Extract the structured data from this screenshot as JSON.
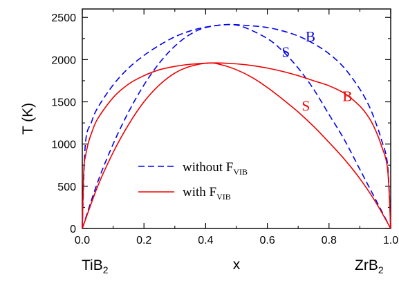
{
  "chart_data": {
    "type": "line",
    "xlabel": "x",
    "ylabel": "T (K)",
    "xlim": [
      0.0,
      1.0
    ],
    "ylim": [
      0,
      2600
    ],
    "x_ticks": [
      "0.0",
      "0.2",
      "0.4",
      "0.6",
      "0.8",
      "1.0"
    ],
    "y_ticks": [
      "0",
      "500",
      "1000",
      "1500",
      "2000",
      "2500"
    ],
    "x_end_labels": {
      "left": {
        "base": "TiB",
        "sub": "2"
      },
      "right": {
        "base": "ZrB",
        "sub": "2"
      }
    },
    "legend": [
      {
        "base": "without F",
        "sub": "VIB",
        "color": "#0000ee",
        "dash": true
      },
      {
        "base": "with F",
        "sub": "VIB",
        "color": "#ee0000",
        "dash": false
      }
    ],
    "curve_labels": [
      {
        "text": "B",
        "color": "#0000ee",
        "at": [
          0.74,
          2215
        ]
      },
      {
        "text": "S",
        "color": "#0000ee",
        "at": [
          0.66,
          2030
        ]
      },
      {
        "text": "B",
        "color": "#ee0000",
        "at": [
          0.86,
          1510
        ]
      },
      {
        "text": "S",
        "color": "#ee0000",
        "at": [
          0.725,
          1395
        ]
      }
    ],
    "series": [
      {
        "color": "#0000ee",
        "dash": true,
        "curve": "binodal",
        "points": [
          [
            0.0,
            0
          ],
          [
            0.01,
            1000
          ],
          [
            0.03,
            1260
          ],
          [
            0.05,
            1430
          ],
          [
            0.1,
            1700
          ],
          [
            0.15,
            1900
          ],
          [
            0.2,
            2050
          ],
          [
            0.25,
            2170
          ],
          [
            0.3,
            2270
          ],
          [
            0.35,
            2340
          ],
          [
            0.4,
            2385
          ],
          [
            0.47,
            2415
          ],
          [
            0.55,
            2400
          ],
          [
            0.6,
            2380
          ],
          [
            0.65,
            2340
          ],
          [
            0.7,
            2280
          ],
          [
            0.75,
            2190
          ],
          [
            0.8,
            2070
          ],
          [
            0.85,
            1900
          ],
          [
            0.9,
            1650
          ],
          [
            0.93,
            1450
          ],
          [
            0.95,
            1270
          ],
          [
            0.97,
            1050
          ],
          [
            0.99,
            750
          ],
          [
            1.0,
            0
          ]
        ]
      },
      {
        "color": "#0000ee",
        "dash": true,
        "curve": "spinodal",
        "points": [
          [
            0.0,
            0
          ],
          [
            0.05,
            550
          ],
          [
            0.1,
            1000
          ],
          [
            0.15,
            1380
          ],
          [
            0.2,
            1700
          ],
          [
            0.25,
            1960
          ],
          [
            0.3,
            2160
          ],
          [
            0.35,
            2300
          ],
          [
            0.4,
            2380
          ],
          [
            0.47,
            2415
          ],
          [
            0.52,
            2390
          ],
          [
            0.6,
            2250
          ],
          [
            0.65,
            2100
          ],
          [
            0.7,
            1900
          ],
          [
            0.75,
            1650
          ],
          [
            0.8,
            1350
          ],
          [
            0.85,
            1050
          ],
          [
            0.9,
            700
          ],
          [
            0.95,
            350
          ],
          [
            1.0,
            0
          ]
        ]
      },
      {
        "color": "#ee0000",
        "dash": false,
        "curve": "binodal",
        "points": [
          [
            0.0,
            0
          ],
          [
            0.005,
            700
          ],
          [
            0.01,
            850
          ],
          [
            0.02,
            1020
          ],
          [
            0.03,
            1130
          ],
          [
            0.05,
            1300
          ],
          [
            0.1,
            1550
          ],
          [
            0.15,
            1710
          ],
          [
            0.2,
            1810
          ],
          [
            0.25,
            1880
          ],
          [
            0.3,
            1920
          ],
          [
            0.35,
            1945
          ],
          [
            0.41,
            1960
          ],
          [
            0.45,
            1960
          ],
          [
            0.5,
            1950
          ],
          [
            0.55,
            1930
          ],
          [
            0.6,
            1900
          ],
          [
            0.65,
            1860
          ],
          [
            0.7,
            1810
          ],
          [
            0.75,
            1750
          ],
          [
            0.8,
            1690
          ],
          [
            0.85,
            1600
          ],
          [
            0.9,
            1450
          ],
          [
            0.93,
            1310
          ],
          [
            0.95,
            1170
          ],
          [
            0.97,
            980
          ],
          [
            0.99,
            700
          ],
          [
            1.0,
            0
          ]
        ]
      },
      {
        "color": "#ee0000",
        "dash": false,
        "curve": "spinodal",
        "points": [
          [
            0.0,
            0
          ],
          [
            0.05,
            500
          ],
          [
            0.1,
            900
          ],
          [
            0.15,
            1230
          ],
          [
            0.2,
            1500
          ],
          [
            0.25,
            1700
          ],
          [
            0.3,
            1840
          ],
          [
            0.35,
            1920
          ],
          [
            0.41,
            1960
          ],
          [
            0.45,
            1940
          ],
          [
            0.5,
            1880
          ],
          [
            0.55,
            1790
          ],
          [
            0.6,
            1670
          ],
          [
            0.65,
            1530
          ],
          [
            0.7,
            1380
          ],
          [
            0.75,
            1210
          ],
          [
            0.8,
            1020
          ],
          [
            0.85,
            820
          ],
          [
            0.9,
            590
          ],
          [
            0.95,
            320
          ],
          [
            1.0,
            0
          ]
        ]
      }
    ]
  }
}
